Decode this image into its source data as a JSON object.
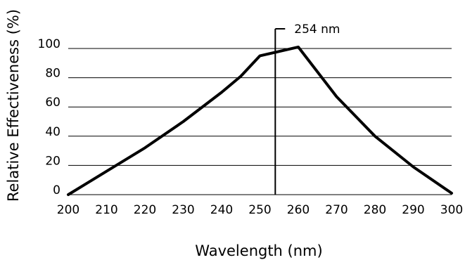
{
  "chart_data": {
    "type": "line",
    "title": "",
    "xlabel": "Wavelength (nm)",
    "ylabel": "Relative Effectiveness (%)",
    "xlim": [
      200,
      300
    ],
    "ylim": [
      0,
      100
    ],
    "x_ticks": [
      200,
      210,
      220,
      230,
      240,
      250,
      260,
      270,
      280,
      290,
      300
    ],
    "y_ticks": [
      0,
      20,
      40,
      60,
      80,
      100
    ],
    "grid": "horizontal",
    "legend": "none",
    "series": [
      {
        "x": [
          200,
          210,
          220,
          230,
          240,
          245,
          250,
          260,
          270,
          280,
          290,
          300
        ],
        "y": [
          0,
          16,
          32,
          50,
          70,
          81,
          95,
          101,
          67,
          40,
          19,
          1
        ],
        "color": "#000000"
      }
    ],
    "annotations": [
      {
        "type": "vertical-line",
        "x": 254,
        "label": "254 nm"
      }
    ]
  }
}
